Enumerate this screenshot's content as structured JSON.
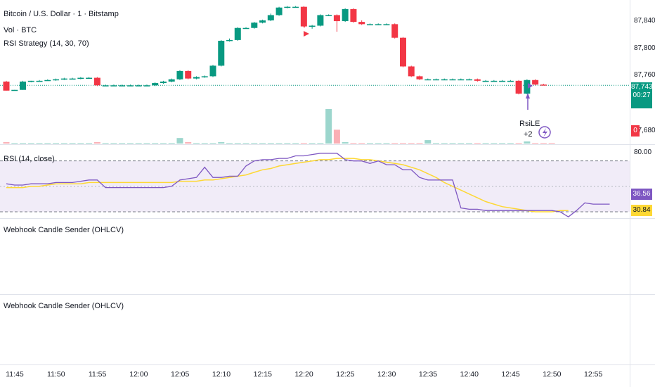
{
  "legend": {
    "main": "Bitcoin / U.S. Dollar · 1 · Bitstamp",
    "volume": "Vol · BTC",
    "strategy": "RSI Strategy (14, 30, 70)",
    "rsi": "RSI (14, close)",
    "webhook1": "Webhook Candle Sender (OHLCV)",
    "webhook2": "Webhook Candle Sender (OHLCV)"
  },
  "price_axis": {
    "labels": [
      "87,840",
      "87,800",
      "87,760",
      "87,680"
    ],
    "last_price": "87,743",
    "countdown": "00:27",
    "volume_last": "0"
  },
  "rsi_axis": {
    "top": "80.00",
    "rsi_value": "36.56",
    "ma_value": "30.84"
  },
  "signal": {
    "label": "RsiLE",
    "count": "+2"
  },
  "colors": {
    "up": "#089981",
    "down": "#f23645",
    "rsi": "#7e57c2",
    "rsi_ma": "#fdd835",
    "band_fill": "#ede7f6"
  },
  "chart_data": {
    "type": "candlestick",
    "time_labels": [
      "11:45",
      "11:50",
      "11:55",
      "12:00",
      "12:05",
      "12:10",
      "12:15",
      "12:20",
      "12:25",
      "12:30",
      "12:35",
      "12:40",
      "12:45",
      "12:50",
      "12:55"
    ],
    "price_range": [
      87665,
      87856
    ],
    "candles": [
      {
        "t": "11:43",
        "o": 87748,
        "h": 87749,
        "l": 87736,
        "c": 87736
      },
      {
        "t": "11:44",
        "o": 87736,
        "h": 87737,
        "l": 87736,
        "c": 87737
      },
      {
        "t": "11:45",
        "o": 87737,
        "h": 87749,
        "l": 87737,
        "c": 87748
      },
      {
        "t": "11:46",
        "o": 87748,
        "h": 87749,
        "l": 87747,
        "c": 87749
      },
      {
        "t": "11:47",
        "o": 87749,
        "h": 87750,
        "l": 87748,
        "c": 87749
      },
      {
        "t": "11:48",
        "o": 87749,
        "h": 87751,
        "l": 87749,
        "c": 87750
      },
      {
        "t": "11:49",
        "o": 87750,
        "h": 87752,
        "l": 87749,
        "c": 87751
      },
      {
        "t": "11:50",
        "o": 87751,
        "h": 87753,
        "l": 87750,
        "c": 87752
      },
      {
        "t": "11:51",
        "o": 87752,
        "h": 87753,
        "l": 87751,
        "c": 87752
      },
      {
        "t": "11:52",
        "o": 87752,
        "h": 87754,
        "l": 87751,
        "c": 87753
      },
      {
        "t": "11:53",
        "o": 87753,
        "h": 87754,
        "l": 87752,
        "c": 87753
      },
      {
        "t": "11:54",
        "o": 87753,
        "h": 87754,
        "l": 87742,
        "c": 87743
      },
      {
        "t": "11:55",
        "o": 87743,
        "h": 87744,
        "l": 87742,
        "c": 87743
      },
      {
        "t": "11:56",
        "o": 87743,
        "h": 87744,
        "l": 87742,
        "c": 87743
      },
      {
        "t": "11:57",
        "o": 87743,
        "h": 87744,
        "l": 87742,
        "c": 87743
      },
      {
        "t": "11:58",
        "o": 87743,
        "h": 87744,
        "l": 87742,
        "c": 87743
      },
      {
        "t": "11:59",
        "o": 87743,
        "h": 87744,
        "l": 87742,
        "c": 87743
      },
      {
        "t": "12:00",
        "o": 87743,
        "h": 87744,
        "l": 87742,
        "c": 87743
      },
      {
        "t": "12:01",
        "o": 87743,
        "h": 87747,
        "l": 87742,
        "c": 87746
      },
      {
        "t": "12:02",
        "o": 87746,
        "h": 87749,
        "l": 87745,
        "c": 87748
      },
      {
        "t": "12:03",
        "o": 87748,
        "h": 87752,
        "l": 87747,
        "c": 87751
      },
      {
        "t": "12:04",
        "o": 87751,
        "h": 87763,
        "l": 87750,
        "c": 87762
      },
      {
        "t": "12:05",
        "o": 87762,
        "h": 87763,
        "l": 87751,
        "c": 87752
      },
      {
        "t": "12:06",
        "o": 87752,
        "h": 87755,
        "l": 87751,
        "c": 87754
      },
      {
        "t": "12:07",
        "o": 87754,
        "h": 87756,
        "l": 87753,
        "c": 87755
      },
      {
        "t": "12:08",
        "o": 87755,
        "h": 87770,
        "l": 87754,
        "c": 87769
      },
      {
        "t": "12:09",
        "o": 87769,
        "h": 87803,
        "l": 87768,
        "c": 87802
      },
      {
        "t": "12:10",
        "o": 87802,
        "h": 87805,
        "l": 87801,
        "c": 87803
      },
      {
        "t": "12:11",
        "o": 87803,
        "h": 87820,
        "l": 87802,
        "c": 87819
      },
      {
        "t": "12:12",
        "o": 87819,
        "h": 87820,
        "l": 87818,
        "c": 87819
      },
      {
        "t": "12:13",
        "o": 87819,
        "h": 87827,
        "l": 87818,
        "c": 87826
      },
      {
        "t": "12:14",
        "o": 87826,
        "h": 87830,
        "l": 87825,
        "c": 87829
      },
      {
        "t": "12:15",
        "o": 87829,
        "h": 87838,
        "l": 87828,
        "c": 87836
      },
      {
        "t": "12:16",
        "o": 87836,
        "h": 87847,
        "l": 87835,
        "c": 87846
      },
      {
        "t": "12:17",
        "o": 87846,
        "h": 87848,
        "l": 87845,
        "c": 87847
      },
      {
        "t": "12:18",
        "o": 87847,
        "h": 87848,
        "l": 87846,
        "c": 87847
      },
      {
        "t": "12:19",
        "o": 87847,
        "h": 87848,
        "l": 87820,
        "c": 87821
      },
      {
        "t": "12:20",
        "o": 87821,
        "h": 87823,
        "l": 87818,
        "c": 87822
      },
      {
        "t": "12:21",
        "o": 87822,
        "h": 87837,
        "l": 87821,
        "c": 87836
      },
      {
        "t": "12:22",
        "o": 87836,
        "h": 87837,
        "l": 87835,
        "c": 87836
      },
      {
        "t": "12:23",
        "o": 87836,
        "h": 87837,
        "l": 87814,
        "c": 87828
      },
      {
        "t": "12:24",
        "o": 87828,
        "h": 87845,
        "l": 87827,
        "c": 87844
      },
      {
        "t": "12:25",
        "o": 87844,
        "h": 87845,
        "l": 87826,
        "c": 87827
      },
      {
        "t": "12:26",
        "o": 87827,
        "h": 87829,
        "l": 87823,
        "c": 87824
      },
      {
        "t": "12:27",
        "o": 87824,
        "h": 87825,
        "l": 87823,
        "c": 87824
      },
      {
        "t": "12:28",
        "o": 87824,
        "h": 87825,
        "l": 87823,
        "c": 87824
      },
      {
        "t": "12:29",
        "o": 87824,
        "h": 87825,
        "l": 87823,
        "c": 87824
      },
      {
        "t": "12:30",
        "o": 87824,
        "h": 87825,
        "l": 87805,
        "c": 87806
      },
      {
        "t": "12:31",
        "o": 87806,
        "h": 87807,
        "l": 87767,
        "c": 87768
      },
      {
        "t": "12:32",
        "o": 87768,
        "h": 87769,
        "l": 87754,
        "c": 87755
      },
      {
        "t": "12:33",
        "o": 87755,
        "h": 87756,
        "l": 87750,
        "c": 87751
      },
      {
        "t": "12:34",
        "o": 87751,
        "h": 87752,
        "l": 87750,
        "c": 87751
      },
      {
        "t": "12:35",
        "o": 87751,
        "h": 87752,
        "l": 87750,
        "c": 87751
      },
      {
        "t": "12:36",
        "o": 87751,
        "h": 87752,
        "l": 87750,
        "c": 87751
      },
      {
        "t": "12:37",
        "o": 87751,
        "h": 87752,
        "l": 87750,
        "c": 87751
      },
      {
        "t": "12:38",
        "o": 87751,
        "h": 87752,
        "l": 87750,
        "c": 87751
      },
      {
        "t": "12:39",
        "o": 87751,
        "h": 87752,
        "l": 87750,
        "c": 87751
      },
      {
        "t": "12:40",
        "o": 87751,
        "h": 87752,
        "l": 87748,
        "c": 87749
      },
      {
        "t": "12:41",
        "o": 87749,
        "h": 87750,
        "l": 87748,
        "c": 87749
      },
      {
        "t": "12:42",
        "o": 87749,
        "h": 87750,
        "l": 87748,
        "c": 87749
      },
      {
        "t": "12:43",
        "o": 87749,
        "h": 87750,
        "l": 87748,
        "c": 87749
      },
      {
        "t": "12:44",
        "o": 87749,
        "h": 87750,
        "l": 87748,
        "c": 87749
      },
      {
        "t": "12:45",
        "o": 87749,
        "h": 87750,
        "l": 87731,
        "c": 87732
      },
      {
        "t": "12:46",
        "o": 87732,
        "h": 87751,
        "l": 87731,
        "c": 87750
      },
      {
        "t": "12:47",
        "o": 87750,
        "h": 87751,
        "l": 87743,
        "c": 87744
      },
      {
        "t": "12:48",
        "o": 87744,
        "h": 87745,
        "l": 87743,
        "c": 87743
      }
    ],
    "volume": [
      2,
      1,
      1,
      1,
      1,
      1,
      1,
      1,
      1,
      1,
      1,
      2,
      1,
      1,
      1,
      1,
      1,
      1,
      1,
      1,
      1,
      8,
      2,
      1,
      1,
      1,
      2,
      1,
      1,
      1,
      1,
      1,
      1,
      1,
      1,
      1,
      1,
      1,
      1,
      50,
      20,
      2,
      1,
      1,
      1,
      1,
      1,
      1,
      1,
      1,
      1,
      5,
      1,
      1,
      1,
      1,
      1,
      1,
      1,
      1,
      1,
      1,
      1,
      3,
      1,
      1,
      1
    ],
    "volume_range": [
      0,
      55
    ],
    "rsi_range": [
      25,
      82
    ],
    "rsi_levels": [
      70,
      50,
      30
    ],
    "rsi": [
      52,
      51,
      51,
      52,
      52,
      52,
      53,
      53,
      53,
      54,
      55,
      55,
      49,
      49,
      49,
      49,
      49,
      49,
      49,
      49,
      50,
      55,
      56,
      57,
      65,
      57,
      57,
      58,
      58,
      66,
      70,
      71,
      71,
      72,
      72,
      74,
      74,
      75,
      76,
      76,
      76,
      71,
      70,
      70,
      68,
      70,
      67,
      67,
      63,
      63,
      57,
      55,
      55,
      55,
      55,
      33,
      32,
      32,
      31,
      31,
      31,
      31,
      31,
      31,
      31,
      31,
      31,
      30,
      26,
      31,
      37,
      36,
      36,
      36
    ],
    "rsi_ma": [
      49,
      49,
      49,
      50,
      50,
      51,
      52,
      52,
      52,
      52,
      53,
      53,
      53,
      53,
      53,
      53,
      53,
      53,
      53,
      53,
      53,
      54,
      54,
      54,
      55,
      55,
      56,
      57,
      58,
      59,
      61,
      63,
      64,
      66,
      67,
      68,
      69,
      70,
      71,
      71,
      72,
      72,
      72,
      71,
      71,
      70,
      69,
      68,
      67,
      65,
      63,
      60,
      57,
      53,
      50,
      47,
      44,
      41,
      38,
      36,
      34,
      33,
      32,
      31,
      30,
      30,
      30,
      31,
      31
    ],
    "annotations": [
      "RsiLE",
      "+2"
    ]
  }
}
